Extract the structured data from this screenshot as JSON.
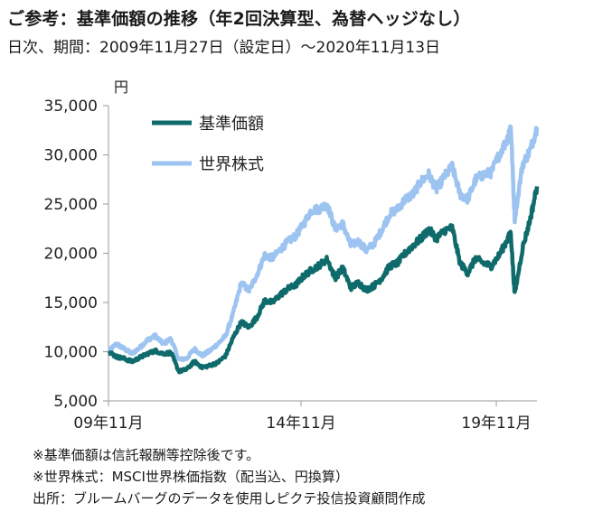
{
  "header": {
    "title": "ご参考：基準価額の推移（年2回決算型、為替ヘッジなし）",
    "subtitle": "日次、期間：2009年11月27日（設定日）～2020年11月13日"
  },
  "footnotes": [
    "※基準価額は信託報酬等控除後です。",
    "※世界株式：MSCI世界株価指数（配当込、円換算）",
    "出所：ブルームバーグのデータを使用しピクテ投信投資顧問作成"
  ],
  "chart_data": {
    "type": "line",
    "ylabel": "円",
    "xlabel": "",
    "ylim": [
      5000,
      35000
    ],
    "yticks": [
      5000,
      10000,
      15000,
      20000,
      25000,
      30000,
      35000
    ],
    "ytick_labels": [
      "5,000",
      "10,000",
      "15,000",
      "20,000",
      "25,000",
      "30,000",
      "35,000"
    ],
    "xlim": [
      2009.9,
      2020.87
    ],
    "xticks": [
      2009.83,
      2014.83,
      2019.83
    ],
    "xtick_labels": [
      "09年11月",
      "14年11月",
      "19年11月"
    ],
    "legend_position": "top-left",
    "grid": false,
    "series": [
      {
        "name": "世界株式",
        "color": "#9dc3f0",
        "x": [
          2009.9,
          2010.1,
          2010.3,
          2010.5,
          2010.7,
          2010.9,
          2011.1,
          2011.3,
          2011.5,
          2011.7,
          2011.9,
          2012.1,
          2012.3,
          2012.5,
          2012.7,
          2012.9,
          2013.1,
          2013.3,
          2013.5,
          2013.7,
          2013.9,
          2014.1,
          2014.3,
          2014.5,
          2014.7,
          2014.9,
          2015.1,
          2015.3,
          2015.5,
          2015.7,
          2015.9,
          2016.1,
          2016.3,
          2016.5,
          2016.7,
          2016.9,
          2017.1,
          2017.3,
          2017.5,
          2017.7,
          2017.9,
          2018.1,
          2018.3,
          2018.5,
          2018.7,
          2018.9,
          2019.1,
          2019.3,
          2019.5,
          2019.7,
          2019.9,
          2020.1,
          2020.2,
          2020.3,
          2020.5,
          2020.7,
          2020.87
        ],
        "y": [
          10000,
          10800,
          10300,
          9800,
          10400,
          11200,
          11600,
          10800,
          11300,
          9200,
          9300,
          10300,
          9600,
          10100,
          10800,
          11600,
          14000,
          17000,
          16200,
          17800,
          19800,
          19500,
          20400,
          21200,
          21800,
          23000,
          24400,
          24500,
          25000,
          22500,
          23000,
          20800,
          21200,
          20300,
          21000,
          22400,
          24000,
          24500,
          25500,
          26000,
          27300,
          28000,
          26500,
          27800,
          28800,
          26000,
          25500,
          27500,
          28000,
          28200,
          30000,
          31500,
          33000,
          23500,
          29000,
          30500,
          32800
        ]
      },
      {
        "name": "基準価額",
        "color": "#0f6b6b",
        "x": [
          2009.9,
          2010.1,
          2010.3,
          2010.5,
          2010.7,
          2010.9,
          2011.1,
          2011.3,
          2011.5,
          2011.7,
          2011.9,
          2012.1,
          2012.3,
          2012.5,
          2012.7,
          2012.9,
          2013.1,
          2013.3,
          2013.5,
          2013.7,
          2013.9,
          2014.1,
          2014.3,
          2014.5,
          2014.7,
          2014.9,
          2015.1,
          2015.3,
          2015.5,
          2015.7,
          2015.9,
          2016.1,
          2016.3,
          2016.5,
          2016.7,
          2016.9,
          2017.1,
          2017.3,
          2017.5,
          2017.7,
          2017.9,
          2018.1,
          2018.3,
          2018.5,
          2018.7,
          2018.9,
          2019.1,
          2019.3,
          2019.5,
          2019.7,
          2019.9,
          2020.1,
          2020.2,
          2020.3,
          2020.5,
          2020.7,
          2020.87
        ],
        "y": [
          10000,
          9500,
          9300,
          9000,
          9400,
          9800,
          10100,
          9800,
          9900,
          8000,
          8200,
          9000,
          8400,
          8600,
          8900,
          9600,
          11500,
          13000,
          12500,
          13500,
          15200,
          15000,
          15800,
          16400,
          16800,
          17700,
          18300,
          18800,
          19400,
          17500,
          18500,
          16500,
          17000,
          16300,
          16700,
          17500,
          18700,
          19000,
          20000,
          20800,
          21500,
          22400,
          21500,
          22300,
          22600,
          19000,
          18000,
          19500,
          19000,
          18700,
          19800,
          21300,
          22000,
          15800,
          20500,
          23500,
          26800
        ]
      }
    ]
  }
}
